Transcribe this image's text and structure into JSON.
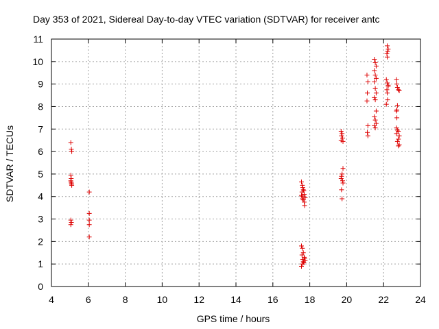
{
  "chart_data": {
    "type": "scatter",
    "title": "Day 353 of 2021, Sidereal Day-to-day VTEC variation (SDTVAR) for receiver antc",
    "xlabel": "GPS time / hours",
    "ylabel": "SDTVAR / TECUs",
    "xlim": [
      4,
      24
    ],
    "ylim": [
      0,
      11
    ],
    "xticks": [
      "4",
      "6",
      "8",
      "10",
      "12",
      "14",
      "16",
      "18",
      "20",
      "22",
      "24"
    ],
    "yticks": [
      "0",
      "1",
      "2",
      "3",
      "4",
      "5",
      "6",
      "7",
      "8",
      "9",
      "10",
      "11"
    ],
    "grid": true,
    "marker": "+",
    "marker_color": "#dd0000",
    "series": [
      {
        "name": "SDTVAR",
        "points": [
          [
            5.05,
            6.4
          ],
          [
            5.08,
            6.1
          ],
          [
            5.1,
            6.0
          ],
          [
            5.05,
            4.95
          ],
          [
            5.07,
            4.8
          ],
          [
            5.05,
            4.7
          ],
          [
            5.08,
            4.6
          ],
          [
            5.1,
            4.5
          ],
          [
            5.06,
            4.65
          ],
          [
            5.09,
            4.55
          ],
          [
            5.05,
            2.95
          ],
          [
            5.08,
            2.85
          ],
          [
            5.05,
            2.75
          ],
          [
            6.05,
            4.2
          ],
          [
            6.05,
            3.25
          ],
          [
            6.05,
            2.95
          ],
          [
            6.05,
            2.75
          ],
          [
            6.05,
            2.2
          ],
          [
            17.55,
            4.65
          ],
          [
            17.6,
            4.5
          ],
          [
            17.62,
            4.4
          ],
          [
            17.65,
            4.3
          ],
          [
            17.58,
            4.2
          ],
          [
            17.7,
            4.1
          ],
          [
            17.6,
            4.0
          ],
          [
            17.75,
            3.95
          ],
          [
            17.65,
            3.85
          ],
          [
            17.7,
            3.75
          ],
          [
            17.72,
            3.6
          ],
          [
            17.55,
            4.05
          ],
          [
            17.68,
            4.25
          ],
          [
            17.6,
            3.9
          ],
          [
            17.55,
            1.8
          ],
          [
            17.6,
            1.7
          ],
          [
            17.65,
            1.5
          ],
          [
            17.58,
            1.4
          ],
          [
            17.7,
            1.3
          ],
          [
            17.62,
            1.2
          ],
          [
            17.75,
            1.15
          ],
          [
            17.65,
            1.1
          ],
          [
            17.6,
            1.0
          ],
          [
            17.55,
            0.9
          ],
          [
            17.72,
            1.25
          ],
          [
            17.68,
            1.05
          ],
          [
            19.7,
            6.9
          ],
          [
            19.75,
            6.8
          ],
          [
            19.72,
            6.7
          ],
          [
            19.78,
            6.6
          ],
          [
            19.7,
            6.5
          ],
          [
            19.8,
            6.45
          ],
          [
            19.8,
            5.25
          ],
          [
            19.75,
            5.0
          ],
          [
            19.72,
            4.9
          ],
          [
            19.7,
            4.8
          ],
          [
            19.78,
            4.7
          ],
          [
            19.8,
            4.6
          ],
          [
            19.72,
            4.3
          ],
          [
            19.75,
            3.9
          ],
          [
            21.1,
            9.4
          ],
          [
            21.15,
            9.1
          ],
          [
            21.12,
            8.6
          ],
          [
            21.1,
            8.25
          ],
          [
            21.15,
            7.15
          ],
          [
            21.12,
            6.85
          ],
          [
            21.15,
            6.7
          ],
          [
            21.5,
            10.1
          ],
          [
            21.55,
            9.95
          ],
          [
            21.6,
            9.8
          ],
          [
            21.5,
            9.6
          ],
          [
            21.55,
            9.4
          ],
          [
            21.6,
            9.25
          ],
          [
            21.5,
            9.1
          ],
          [
            21.55,
            8.8
          ],
          [
            21.6,
            8.6
          ],
          [
            21.5,
            8.4
          ],
          [
            21.55,
            8.3
          ],
          [
            21.6,
            7.8
          ],
          [
            21.5,
            7.55
          ],
          [
            21.55,
            7.4
          ],
          [
            21.6,
            7.25
          ],
          [
            21.5,
            7.15
          ],
          [
            21.55,
            7.05
          ],
          [
            22.2,
            10.7
          ],
          [
            22.25,
            10.55
          ],
          [
            22.22,
            10.45
          ],
          [
            22.18,
            10.35
          ],
          [
            22.2,
            10.2
          ],
          [
            22.15,
            9.2
          ],
          [
            22.2,
            9.05
          ],
          [
            22.25,
            8.9
          ],
          [
            22.18,
            8.75
          ],
          [
            22.2,
            8.6
          ],
          [
            22.22,
            8.3
          ],
          [
            22.15,
            8.1
          ],
          [
            22.25,
            8.95
          ],
          [
            22.7,
            9.2
          ],
          [
            22.72,
            9.0
          ],
          [
            22.75,
            8.85
          ],
          [
            22.8,
            8.75
          ],
          [
            22.85,
            8.7
          ],
          [
            22.75,
            8.05
          ],
          [
            22.72,
            7.85
          ],
          [
            22.7,
            7.8
          ],
          [
            22.72,
            7.5
          ],
          [
            22.7,
            7.05
          ],
          [
            22.75,
            6.95
          ],
          [
            22.8,
            6.9
          ],
          [
            22.7,
            6.8
          ],
          [
            22.85,
            6.7
          ],
          [
            22.8,
            6.55
          ],
          [
            22.75,
            6.45
          ],
          [
            22.85,
            6.3
          ],
          [
            22.8,
            6.25
          ]
        ]
      }
    ]
  }
}
